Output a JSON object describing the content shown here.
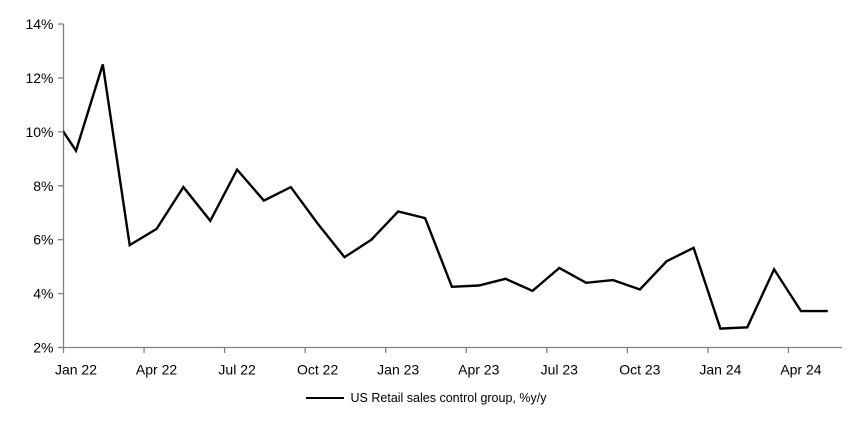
{
  "chart_data": {
    "type": "line",
    "title": "",
    "xlabel": "",
    "ylabel": "",
    "ylim": [
      2,
      14
    ],
    "y_tick_step": 2,
    "y_tick_labels": [
      "2%",
      "4%",
      "6%",
      "8%",
      "10%",
      "12%",
      "14%"
    ],
    "x_tick_labels": [
      "Jan 22",
      "Apr 22",
      "Jul 22",
      "Oct 22",
      "Jan 23",
      "Apr 23",
      "Jul 23",
      "Oct 23",
      "Jan 24",
      "Apr 24"
    ],
    "grid": false,
    "legend_position": "bottom-center",
    "axis_color": "#808080",
    "text_color": "#000000",
    "series": [
      {
        "name": "US Retail sales control group, %y/y",
        "color": "#000000",
        "x": [
          "Dec 21",
          "Jan 22",
          "Feb 22",
          "Mar 22",
          "Apr 22",
          "May 22",
          "Jun 22",
          "Jul 22",
          "Aug 22",
          "Sep 22",
          "Oct 22",
          "Nov 22",
          "Dec 22",
          "Jan 23",
          "Feb 23",
          "Mar 23",
          "Apr 23",
          "May 23",
          "Jun 23",
          "Jul 23",
          "Aug 23",
          "Sep 23",
          "Oct 23",
          "Nov 23",
          "Dec 23",
          "Jan 24",
          "Feb 24",
          "Mar 24",
          "Apr 24",
          "May 24"
        ],
        "values": [
          10.8,
          9.3,
          12.5,
          5.8,
          6.4,
          7.95,
          6.7,
          8.6,
          7.45,
          7.95,
          6.6,
          5.35,
          6.0,
          7.05,
          6.8,
          4.25,
          4.3,
          4.55,
          4.1,
          4.95,
          4.4,
          4.5,
          4.15,
          5.2,
          5.7,
          2.7,
          2.75,
          4.9,
          3.35,
          3.35
        ],
        "first_point_clipped_by_axis": true
      }
    ]
  },
  "legend": {
    "label": "US Retail sales control group, %y/y"
  }
}
